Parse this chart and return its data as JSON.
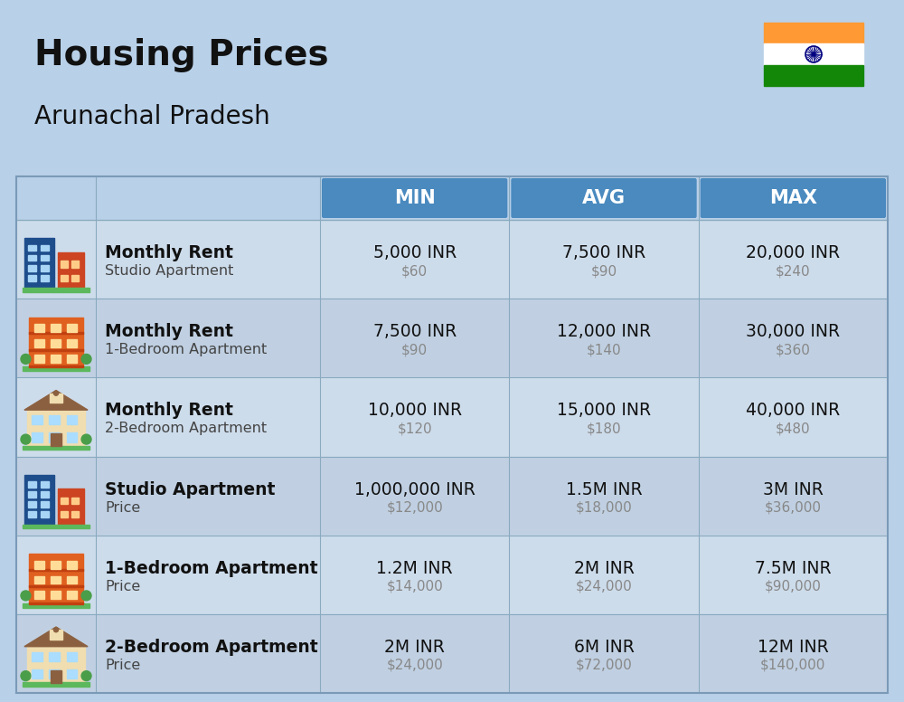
{
  "title": "Housing Prices",
  "subtitle": "Arunachal Pradesh",
  "bg_color": "#b8d0e8",
  "header_color": "#4a8abf",
  "header_text_color": "#ffffff",
  "col_headers": [
    "MIN",
    "AVG",
    "MAX"
  ],
  "rows": [
    {
      "bold_label": "Monthly Rent",
      "sub_label": "Studio Apartment",
      "min_inr": "5,000 INR",
      "min_usd": "$60",
      "avg_inr": "7,500 INR",
      "avg_usd": "$90",
      "max_inr": "20,000 INR",
      "max_usd": "$240",
      "icon_type": "studio_blue"
    },
    {
      "bold_label": "Monthly Rent",
      "sub_label": "1-Bedroom Apartment",
      "min_inr": "7,500 INR",
      "min_usd": "$90",
      "avg_inr": "12,000 INR",
      "avg_usd": "$140",
      "max_inr": "30,000 INR",
      "max_usd": "$360",
      "icon_type": "one_bed_orange"
    },
    {
      "bold_label": "Monthly Rent",
      "sub_label": "2-Bedroom Apartment",
      "min_inr": "10,000 INR",
      "min_usd": "$120",
      "avg_inr": "15,000 INR",
      "avg_usd": "$180",
      "max_inr": "40,000 INR",
      "max_usd": "$480",
      "icon_type": "two_bed_beige"
    },
    {
      "bold_label": "Studio Apartment",
      "sub_label": "Price",
      "min_inr": "1,000,000 INR",
      "min_usd": "$12,000",
      "avg_inr": "1.5M INR",
      "avg_usd": "$18,000",
      "max_inr": "3M INR",
      "max_usd": "$36,000",
      "icon_type": "studio_blue"
    },
    {
      "bold_label": "1-Bedroom Apartment",
      "sub_label": "Price",
      "min_inr": "1.2M INR",
      "min_usd": "$14,000",
      "avg_inr": "2M INR",
      "avg_usd": "$24,000",
      "max_inr": "7.5M INR",
      "max_usd": "$90,000",
      "icon_type": "one_bed_orange"
    },
    {
      "bold_label": "2-Bedroom Apartment",
      "sub_label": "Price",
      "min_inr": "2M INR",
      "min_usd": "$24,000",
      "avg_inr": "6M INR",
      "avg_usd": "$72,000",
      "max_inr": "12M INR",
      "max_usd": "$140,000",
      "icon_type": "two_bed_beige2"
    }
  ]
}
